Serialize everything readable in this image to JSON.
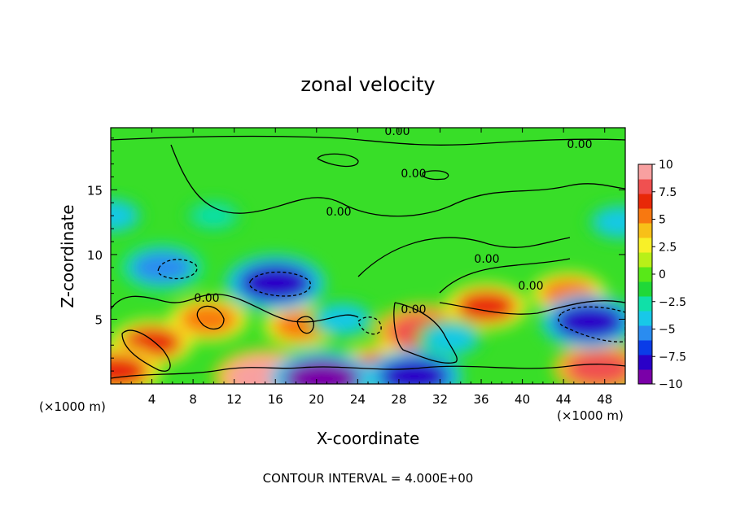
{
  "chart_data": {
    "type": "heatmap",
    "title": "zonal velocity",
    "xlabel": "X-coordinate",
    "ylabel": "Z-coordinate",
    "x_unit_left": "(×1000 m)",
    "x_unit_right": "(×1000 m)",
    "footer": "CONTOUR INTERVAL = 4.000E+00",
    "xlim": [
      0,
      50
    ],
    "ylim": [
      0,
      19.8
    ],
    "x_ticks": [
      4,
      8,
      12,
      16,
      20,
      24,
      28,
      32,
      36,
      40,
      44,
      48
    ],
    "x_tick_labels": [
      "4",
      "8",
      "12",
      "16",
      "20",
      "24",
      "28",
      "32",
      "36",
      "40",
      "44",
      "48"
    ],
    "y_ticks": [
      5,
      10,
      15
    ],
    "y_tick_labels": [
      "5",
      "10",
      "15"
    ],
    "colorbar": {
      "min": -10,
      "max": 10,
      "tick_values": [
        10,
        7.5,
        5,
        2.5,
        0,
        -2.5,
        -5,
        -7.5,
        -10
      ],
      "tick_labels": [
        "10",
        "7.5",
        "5",
        "2.5",
        "0",
        "−2.5",
        "−5",
        "−7.5",
        "−10"
      ],
      "colors": [
        "#7a00a8",
        "#2a00c8",
        "#0a3ce8",
        "#2a8cf0",
        "#18c8e8",
        "#10e0a8",
        "#20d838",
        "#58e818",
        "#b8f018",
        "#f8f028",
        "#f8c018",
        "#f87810",
        "#e82808",
        "#f05050",
        "#f8a0a0"
      ]
    },
    "contour_labels": [
      "0.00",
      "0.00",
      "0.00",
      "0.00",
      "0.00",
      "0.00",
      "0.00",
      "0.00"
    ],
    "features": [
      {
        "x": 30.5,
        "z": 4.0,
        "u": 8.5
      },
      {
        "x": 4.0,
        "z": 3.2,
        "u": 6.0
      },
      {
        "x": 9.5,
        "z": 5.0,
        "u": 5.5
      },
      {
        "x": 18.5,
        "z": 4.5,
        "u": 5.0
      },
      {
        "x": 15.0,
        "z": 0.5,
        "u": 9.0
      },
      {
        "x": 0.5,
        "z": 1.0,
        "u": 7.0
      },
      {
        "x": 26.0,
        "z": 1.2,
        "u": 6.5
      },
      {
        "x": 36.5,
        "z": 6.0,
        "u": 6.0
      },
      {
        "x": 44.5,
        "z": 7.0,
        "u": 5.0
      },
      {
        "x": 47.5,
        "z": 1.2,
        "u": 7.5
      },
      {
        "x": 16.0,
        "z": 7.8,
        "u": -8.5
      },
      {
        "x": 5.0,
        "z": 9.0,
        "u": -6.0
      },
      {
        "x": 46.5,
        "z": 4.8,
        "u": -8.0
      },
      {
        "x": 20.5,
        "z": 0.4,
        "u": -9.0
      },
      {
        "x": 29.5,
        "z": 0.6,
        "u": -8.0
      },
      {
        "x": 22.5,
        "z": 5.0,
        "u": -4.0
      },
      {
        "x": 0.0,
        "z": 13.0,
        "u": -4.0
      },
      {
        "x": 49.5,
        "z": 12.5,
        "u": -4.0
      },
      {
        "x": 10.0,
        "z": 13.0,
        "u": -2.5
      },
      {
        "x": 33.0,
        "z": 3.5,
        "u": -4.0
      }
    ]
  }
}
